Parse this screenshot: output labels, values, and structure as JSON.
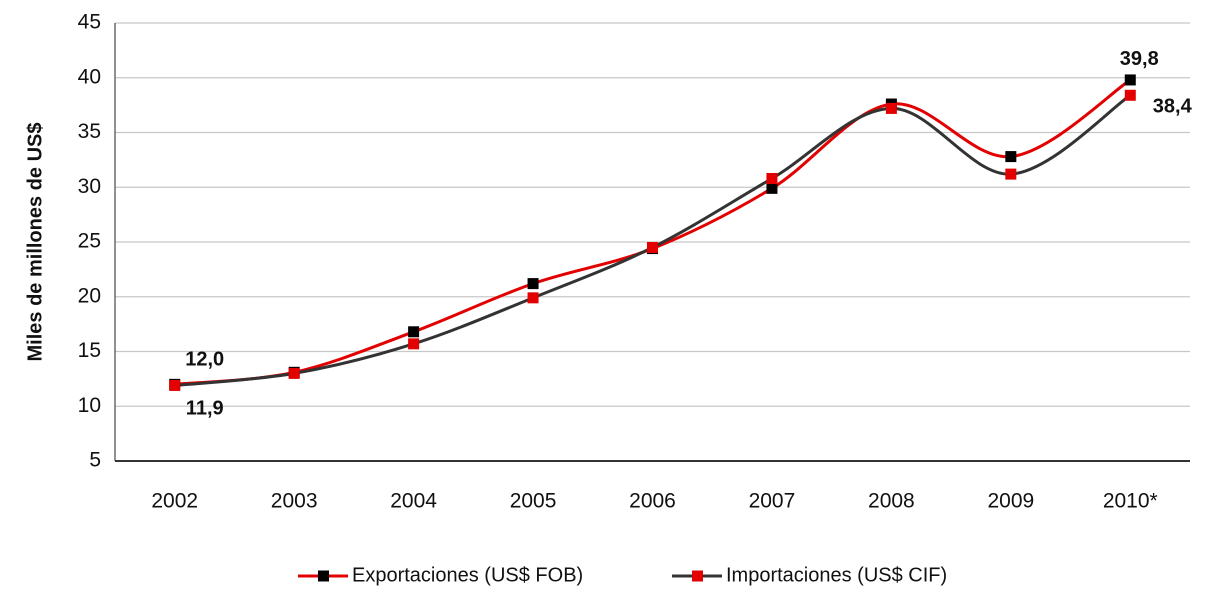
{
  "chart_data": {
    "type": "line",
    "ylabel": "Miles de millones de US$",
    "categories": [
      "2002",
      "2003",
      "2004",
      "2005",
      "2006",
      "2007",
      "2008",
      "2009",
      "2010*"
    ],
    "series": [
      {
        "name": "Exportaciones (US$ FOB)",
        "color": "#e30000",
        "marker_color": "#000000",
        "values": [
          12.0,
          13.1,
          16.8,
          21.2,
          24.4,
          29.9,
          37.6,
          32.8,
          39.8
        ],
        "value_labels": [
          "12,0",
          null,
          null,
          null,
          null,
          null,
          null,
          null,
          "39,8"
        ]
      },
      {
        "name": "Importaciones (US$  CIF)",
        "color": "#333333",
        "marker_color": "#e30000",
        "values": [
          11.9,
          13.0,
          15.7,
          19.9,
          24.5,
          30.8,
          37.2,
          31.2,
          38.4
        ],
        "value_labels": [
          "11,9",
          null,
          null,
          null,
          null,
          null,
          null,
          null,
          "38,4"
        ]
      }
    ],
    "ylim": [
      5,
      45
    ],
    "yticks": [
      5,
      10,
      15,
      20,
      25,
      30,
      35,
      40,
      45
    ],
    "grid": true
  }
}
